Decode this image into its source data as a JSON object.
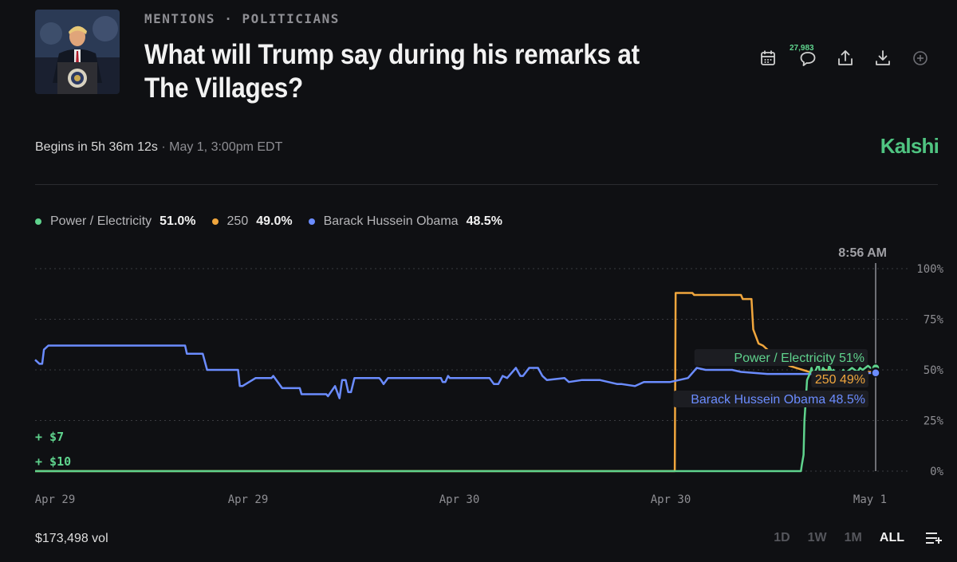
{
  "header": {
    "breadcrumb": [
      "MENTIONS",
      "POLITICIANS"
    ],
    "title": "What will Trump say during his remarks at The Villages?",
    "comment_count": "27,983"
  },
  "event": {
    "begins": "Begins in 5h 36m 12s",
    "date": "May 1, 3:00pm EDT",
    "brand": "Kalshi"
  },
  "icons": [
    "calendar-icon",
    "comment-icon",
    "share-icon",
    "download-icon",
    "add-icon",
    "filter-icon"
  ],
  "colors": {
    "power": "#5fd38d",
    "n250": "#f0a63d",
    "obama": "#6b8cff",
    "brand": "#4fc481"
  },
  "chart_data": {
    "type": "line",
    "x_ticks": [
      "Apr 29",
      "Apr 29",
      "Apr 30",
      "Apr 30",
      "May 1"
    ],
    "y_ticks": [
      "100%",
      "75%",
      "50%",
      "25%",
      "0%"
    ],
    "ylim": [
      0,
      100
    ],
    "hover_time": "8:56 AM",
    "grid": true,
    "legend_position": "top-left",
    "series": [
      {
        "name": "Power / Electricity",
        "value": "51.0%",
        "end_label": "Power / Electricity 51%",
        "color": "#5fd38d",
        "x": [
          0,
          820,
          820,
          868,
          869,
          871,
          872,
          875,
          878,
          880,
          882,
          885,
          888,
          890,
          893,
          895,
          898,
          900,
          903,
          905,
          908,
          910,
          913,
          916,
          918,
          920,
          923,
          926,
          929,
          932,
          935,
          938,
          941,
          944,
          947,
          950
        ],
        "y": [
          0,
          0,
          0,
          0,
          3,
          8,
          25,
          45,
          48,
          51,
          48,
          50,
          53,
          47,
          51,
          50,
          48,
          52,
          49,
          50,
          47,
          49,
          48,
          50,
          48,
          49,
          50,
          51,
          50,
          49,
          51,
          50,
          51,
          52,
          51,
          51
        ]
      },
      {
        "name": "250",
        "value": "49.0%",
        "end_label": "250 49%",
        "color": "#f0a63d",
        "x": [
          0,
          725,
          726,
          728,
          745,
          747,
          800,
          802,
          812,
          814,
          820,
          825,
          835,
          845,
          855,
          870,
          885,
          895,
          905,
          915,
          925,
          935,
          945,
          950
        ],
        "y": [
          0,
          0,
          88,
          88,
          88,
          87,
          87,
          85,
          85,
          70,
          63,
          62,
          58,
          55,
          52,
          50,
          48,
          50,
          49,
          48,
          49,
          48,
          49,
          49
        ]
      },
      {
        "name": "Barack Hussein Obama",
        "value": "48.5%",
        "end_label": "Barack Hussein Obama 48.5%",
        "color": "#6b8cff",
        "x": [
          0,
          5,
          8,
          10,
          15,
          170,
          172,
          190,
          195,
          230,
          232,
          235,
          250,
          252,
          268,
          270,
          280,
          300,
          302,
          330,
          332,
          340,
          345,
          348,
          352,
          355,
          358,
          362,
          380,
          390,
          392,
          395,
          400,
          410,
          460,
          462,
          465,
          468,
          470,
          515,
          520,
          525,
          530,
          535,
          545,
          550,
          553,
          560,
          570,
          575,
          580,
          600,
          605,
          620,
          640,
          660,
          665,
          680,
          690,
          700,
          720,
          730,
          740,
          750,
          760,
          790,
          800,
          830,
          835,
          850,
          870,
          890,
          920,
          950
        ],
        "y": [
          55,
          53,
          53,
          60,
          62,
          62,
          58,
          58,
          50,
          50,
          42,
          42,
          46,
          46,
          46,
          47,
          41,
          41,
          38,
          38,
          37,
          42,
          36,
          45,
          45,
          39,
          39,
          46,
          46,
          46,
          45,
          43,
          46,
          46,
          46,
          44,
          44,
          47,
          46,
          46,
          43,
          43,
          47,
          46,
          51,
          47,
          47,
          51,
          51,
          47,
          45,
          46,
          44,
          45,
          45,
          43,
          43,
          42,
          44,
          44,
          44,
          45,
          46,
          51,
          50,
          50,
          49,
          48,
          48,
          48,
          48,
          48,
          48,
          48.5
        ]
      }
    ],
    "annotations": [
      "+ $7",
      "+ $10"
    ]
  },
  "footer": {
    "volume": "$173,498 vol",
    "ranges": [
      "1D",
      "1W",
      "1M",
      "ALL"
    ],
    "active_range": "ALL"
  }
}
